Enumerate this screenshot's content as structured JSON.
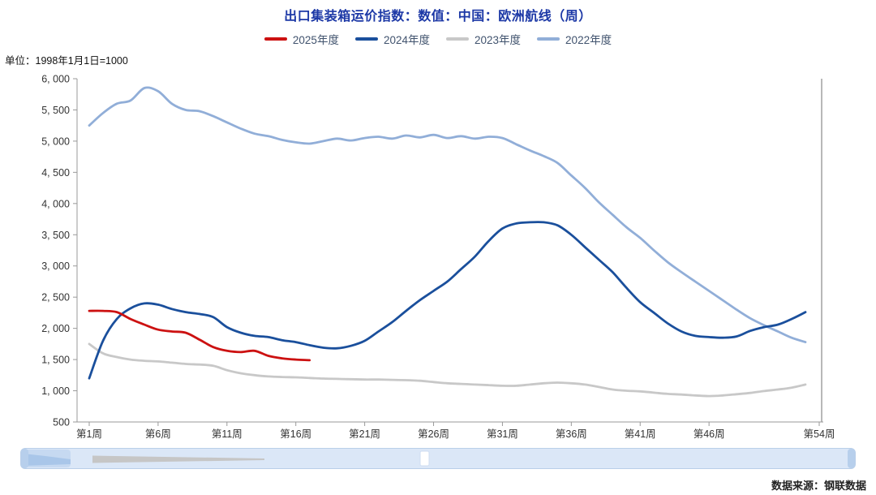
{
  "unit_label": "单位：1998年1月1日=1000",
  "source": "数据来源：钢联数据",
  "colors": {
    "title": "#1c38a6",
    "axis": "#999999",
    "tick_text": "#333333",
    "navigator_track": "#dbe7f7",
    "navigator_border": "#b9cfe9"
  },
  "chart_data": {
    "type": "line",
    "title": "出口集装箱运价指数：数值：中国：欧洲航线（周）",
    "xlabel": "",
    "ylabel": "",
    "grid": false,
    "legend_position": "top",
    "ylim": [
      500,
      6000
    ],
    "y_ticks": [
      {
        "value": 500,
        "label": "500"
      },
      {
        "value": 1000,
        "label": "1, 000"
      },
      {
        "value": 1500,
        "label": "1, 500"
      },
      {
        "value": 2000,
        "label": "2, 000"
      },
      {
        "value": 2500,
        "label": "2, 500"
      },
      {
        "value": 3000,
        "label": "3, 000"
      },
      {
        "value": 3500,
        "label": "3, 500"
      },
      {
        "value": 4000,
        "label": "4, 000"
      },
      {
        "value": 4500,
        "label": "4, 500"
      },
      {
        "value": 5000,
        "label": "5, 000"
      },
      {
        "value": 5500,
        "label": "5, 500"
      },
      {
        "value": 6000,
        "label": "6, 000"
      }
    ],
    "x_ticks": [
      {
        "week": 1,
        "label": "第1周"
      },
      {
        "week": 6,
        "label": "第6周"
      },
      {
        "week": 11,
        "label": "第11周"
      },
      {
        "week": 16,
        "label": "第16周"
      },
      {
        "week": 21,
        "label": "第21周"
      },
      {
        "week": 26,
        "label": "第26周"
      },
      {
        "week": 31,
        "label": "第31周"
      },
      {
        "week": 36,
        "label": "第36周"
      },
      {
        "week": 41,
        "label": "第41周"
      },
      {
        "week": 46,
        "label": "第46周"
      },
      {
        "week": 54,
        "label": "第54周"
      }
    ],
    "x_range_weeks": [
      1,
      54
    ],
    "series": [
      {
        "name": "2022年度",
        "color": "#91aed8",
        "start_week": 1,
        "values": [
          5250,
          5450,
          5600,
          5650,
          5850,
          5800,
          5600,
          5500,
          5480,
          5400,
          5300,
          5200,
          5120,
          5080,
          5020,
          4980,
          4960,
          5000,
          5040,
          5010,
          5050,
          5070,
          5040,
          5090,
          5060,
          5100,
          5050,
          5080,
          5040,
          5070,
          5050,
          4950,
          4850,
          4760,
          4650,
          4450,
          4250,
          4020,
          3820,
          3620,
          3450,
          3250,
          3060,
          2900,
          2750,
          2600,
          2450,
          2300,
          2160,
          2050,
          1950,
          1850,
          1780
        ]
      },
      {
        "name": "2023年度",
        "color": "#c8c8c8",
        "start_week": 1,
        "values": [
          1750,
          1600,
          1540,
          1500,
          1480,
          1470,
          1450,
          1430,
          1420,
          1400,
          1330,
          1280,
          1250,
          1230,
          1220,
          1215,
          1205,
          1195,
          1190,
          1185,
          1180,
          1180,
          1175,
          1170,
          1160,
          1140,
          1120,
          1110,
          1100,
          1090,
          1080,
          1080,
          1100,
          1120,
          1130,
          1120,
          1100,
          1060,
          1020,
          1000,
          990,
          970,
          950,
          940,
          925,
          915,
          925,
          945,
          965,
          995,
          1020,
          1050,
          1100
        ]
      },
      {
        "name": "2024年度",
        "color": "#1a4f9c",
        "start_week": 1,
        "values": [
          1200,
          1800,
          2150,
          2320,
          2400,
          2380,
          2310,
          2260,
          2230,
          2180,
          2020,
          1930,
          1880,
          1860,
          1810,
          1780,
          1730,
          1690,
          1680,
          1720,
          1800,
          1950,
          2100,
          2280,
          2450,
          2600,
          2750,
          2950,
          3150,
          3400,
          3600,
          3680,
          3700,
          3700,
          3650,
          3500,
          3300,
          3100,
          2900,
          2650,
          2420,
          2250,
          2080,
          1950,
          1880,
          1860,
          1850,
          1870,
          1960,
          2020,
          2060,
          2150,
          2260
        ]
      },
      {
        "name": "2025年度",
        "color": "#cc1111",
        "start_week": 1,
        "values": [
          2280,
          2280,
          2260,
          2150,
          2060,
          1980,
          1950,
          1930,
          1820,
          1700,
          1640,
          1620,
          1640,
          1560,
          1520,
          1500,
          1490
        ]
      }
    ],
    "legend_order": [
      "2025年度",
      "2024年度",
      "2023年度",
      "2022年度"
    ]
  }
}
